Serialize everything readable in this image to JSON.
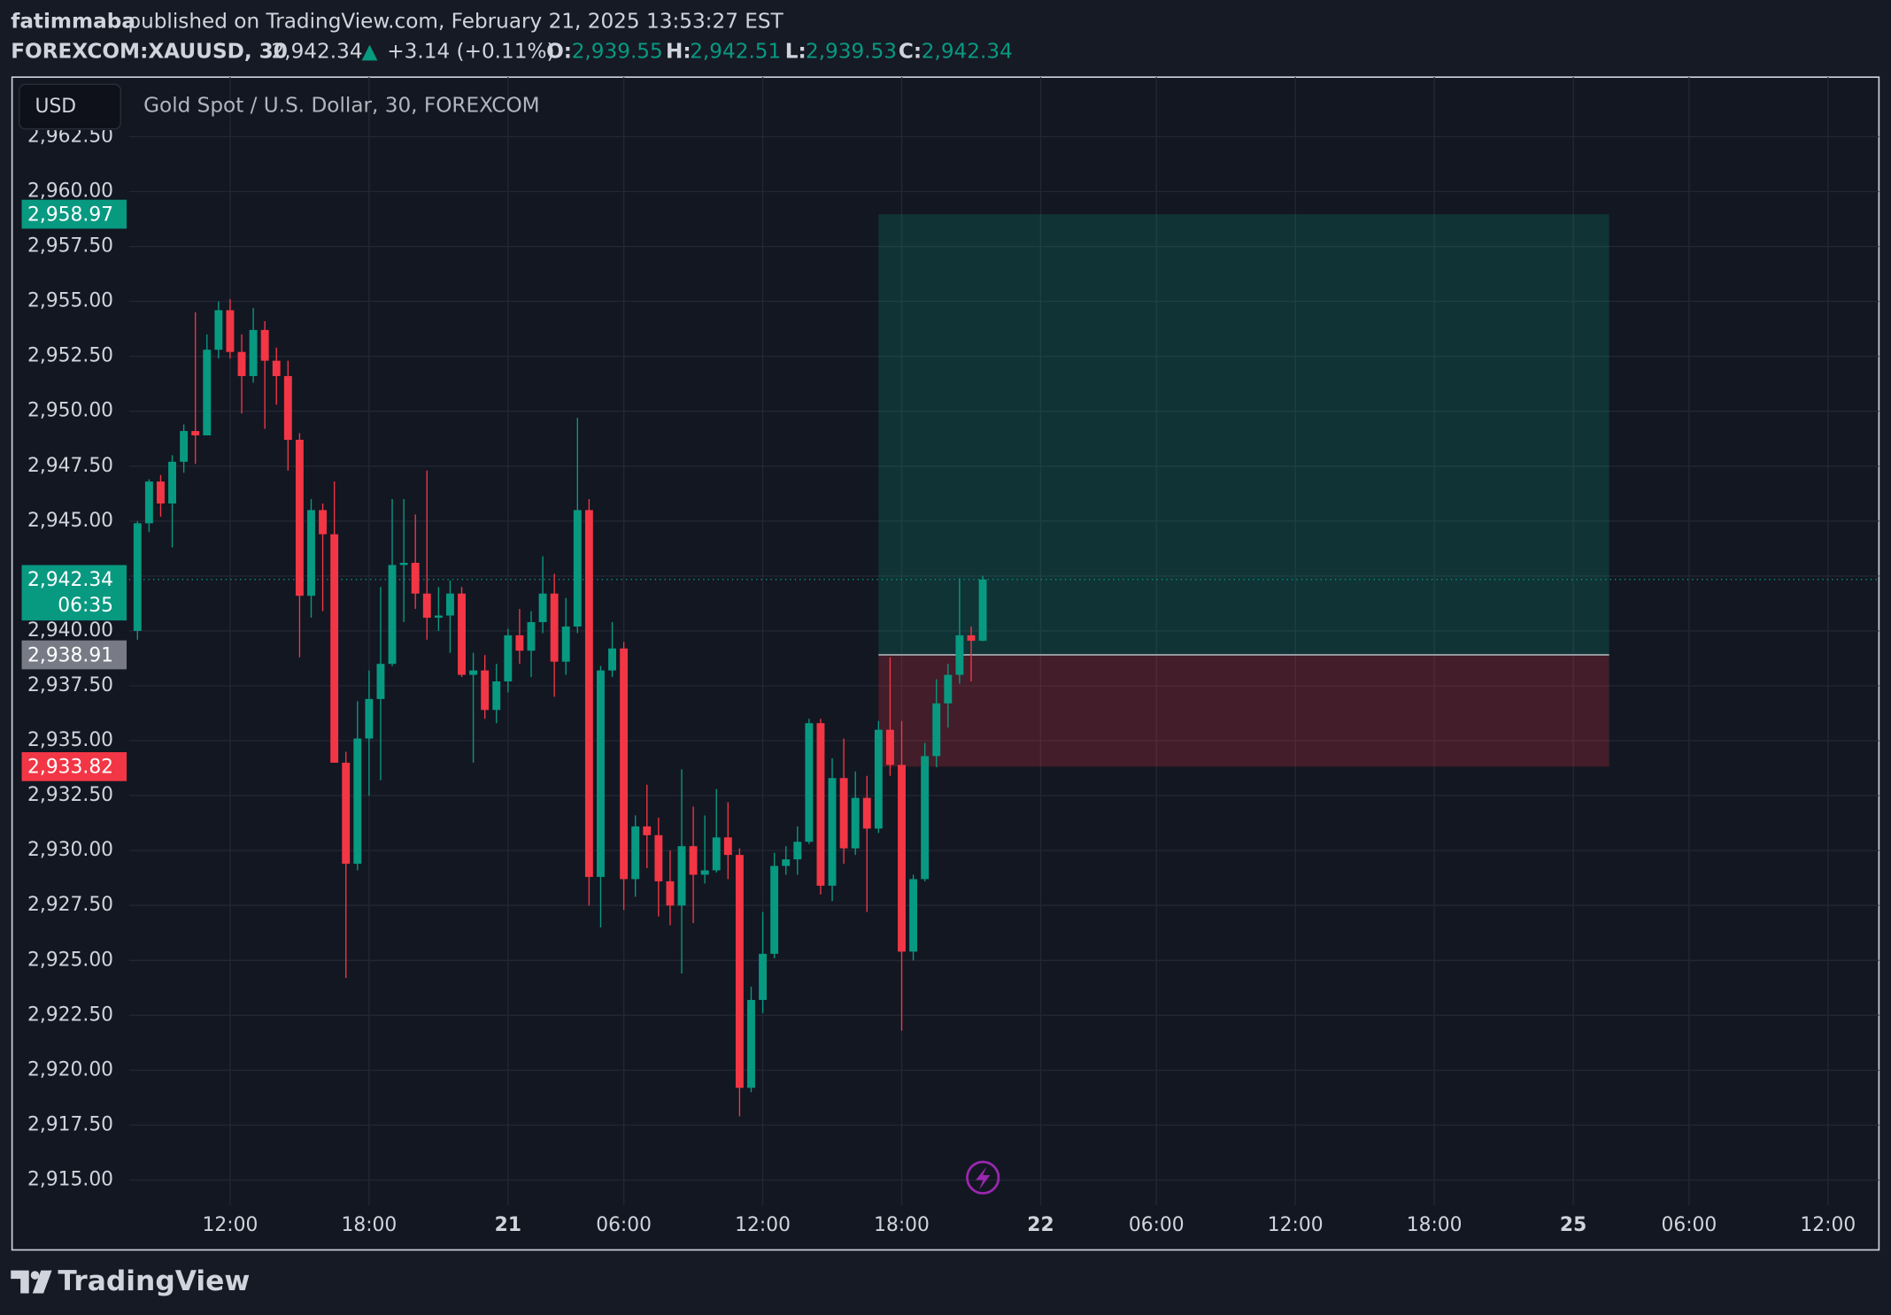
{
  "header": {
    "author": "fatimmaba",
    "published": "published on TradingView.com, February 21, 2025 13:53:27 EST",
    "symbol": "FOREXCOM:XAUUSD, 30",
    "last": "2,942.34",
    "arrow": "▲",
    "change": "+3.14 (+0.11%)",
    "o_label": "O:",
    "open": "2,939.55",
    "h_label": "H:",
    "high": "2,942.51",
    "l_label": "L:",
    "low": "2,939.53",
    "c_label": "C:",
    "close": "2,942.34"
  },
  "chart_data": {
    "type": "candlestick",
    "title": "Gold Spot / U.S. Dollar, 30, FOREXCOM",
    "currency": "USD",
    "up_color": "#089981",
    "down_color": "#f23645",
    "grid": true,
    "xlim": [
      -0.73,
      150.4
    ],
    "ylim": [
      2913.85,
      2965.21
    ],
    "xticks": [
      {
        "value": 8,
        "label": "12:00"
      },
      {
        "value": 20,
        "label": "18:00"
      },
      {
        "value": 32,
        "label": "21"
      },
      {
        "value": 42,
        "label": "06:00"
      },
      {
        "value": 54,
        "label": "12:00"
      },
      {
        "value": 66,
        "label": "18:00"
      },
      {
        "value": 78,
        "label": "22"
      },
      {
        "value": 88,
        "label": "06:00"
      },
      {
        "value": 100,
        "label": "12:00"
      },
      {
        "value": 112,
        "label": "18:00"
      },
      {
        "value": 124,
        "label": "25"
      },
      {
        "value": 134,
        "label": "06:00"
      },
      {
        "value": 146,
        "label": "12:00"
      }
    ],
    "yticks": [
      {
        "value": 2915,
        "label": "2,915.00"
      },
      {
        "value": 2917.5,
        "label": "2,917.50"
      },
      {
        "value": 2920,
        "label": "2,920.00"
      },
      {
        "value": 2922.5,
        "label": "2,922.50"
      },
      {
        "value": 2925,
        "label": "2,925.00"
      },
      {
        "value": 2927.5,
        "label": "2,927.50"
      },
      {
        "value": 2930,
        "label": "2,930.00"
      },
      {
        "value": 2932.5,
        "label": "2,932.50"
      },
      {
        "value": 2935,
        "label": "2,935.00"
      },
      {
        "value": 2937.5,
        "label": "2,937.50"
      },
      {
        "value": 2940,
        "label": "2,940.00"
      },
      {
        "value": 2942.5,
        "label": "2,942.50"
      },
      {
        "value": 2945,
        "label": "2,945.00"
      },
      {
        "value": 2947.5,
        "label": "2,947.50"
      },
      {
        "value": 2950,
        "label": "2,950.00"
      },
      {
        "value": 2952.5,
        "label": "2,952.50"
      },
      {
        "value": 2955,
        "label": "2,955.00"
      },
      {
        "value": 2957.5,
        "label": "2,957.50"
      },
      {
        "value": 2960,
        "label": "2,960.00"
      },
      {
        "value": 2962.5,
        "label": "2,962.50"
      }
    ],
    "open": [
      2940.0,
      2944.9,
      2946.8,
      2945.8,
      2947.7,
      2949.1,
      2948.9,
      2952.8,
      2954.6,
      2952.7,
      2951.6,
      2953.7,
      2952.3,
      2951.6,
      2948.7,
      2941.6,
      2945.5,
      2944.4,
      2934.0,
      2929.4,
      2935.1,
      2936.9,
      2938.5,
      2943.0,
      2943.1,
      2941.7,
      2940.6,
      2940.7,
      2941.7,
      2938.0,
      2938.2,
      2936.4,
      2937.7,
      2939.8,
      2939.1,
      2940.4,
      2941.7,
      2938.6,
      2940.2,
      2945.5,
      2928.8,
      2938.2,
      2939.2,
      2928.7,
      2931.1,
      2930.7,
      2928.6,
      2927.5,
      2930.2,
      2928.9,
      2929.1,
      2930.6,
      2929.8,
      2919.2,
      2923.2,
      2925.3,
      2929.3,
      2929.6,
      2930.4,
      2935.8,
      2928.4,
      2933.3,
      2930.1,
      2932.4,
      2931.0,
      2935.5,
      2933.9,
      2925.4,
      2928.7,
      2934.3,
      2936.7,
      2938.0,
      2939.8,
      2939.55
    ],
    "high": [
      2945.0,
      2946.9,
      2947.1,
      2948.0,
      2949.4,
      2954.5,
      2953.5,
      2955.0,
      2955.1,
      2953.5,
      2954.7,
      2954.1,
      2952.9,
      2952.3,
      2949.0,
      2946.0,
      2945.8,
      2946.8,
      2934.5,
      2936.8,
      2938.2,
      2942.0,
      2946.0,
      2946.0,
      2945.3,
      2947.3,
      2942.0,
      2942.3,
      2942.0,
      2939.0,
      2938.9,
      2938.5,
      2940.1,
      2941.0,
      2940.9,
      2943.4,
      2942.6,
      2941.5,
      2949.7,
      2946.0,
      2938.4,
      2940.4,
      2939.5,
      2931.6,
      2933.0,
      2931.5,
      2930.0,
      2933.7,
      2932.0,
      2931.6,
      2932.8,
      2932.2,
      2930.1,
      2923.8,
      2927.2,
      2929.9,
      2930.2,
      2931.1,
      2936.0,
      2936.0,
      2934.2,
      2935.1,
      2933.6,
      2933.4,
      2935.9,
      2938.8,
      2935.9,
      2928.9,
      2934.9,
      2937.8,
      2938.5,
      2942.4,
      2940.2,
      2942.51
    ],
    "low": [
      2939.6,
      2944.5,
      2945.2,
      2943.8,
      2947.2,
      2947.6,
      2948.9,
      2952.4,
      2952.4,
      2949.9,
      2951.3,
      2949.2,
      2950.3,
      2947.3,
      2938.8,
      2940.6,
      2940.9,
      2934.0,
      2924.2,
      2929.1,
      2932.5,
      2933.2,
      2938.4,
      2940.4,
      2941.0,
      2939.6,
      2940.0,
      2939.0,
      2937.9,
      2934.0,
      2936.0,
      2935.8,
      2937.2,
      2938.5,
      2937.9,
      2939.9,
      2937.0,
      2938.0,
      2939.9,
      2927.5,
      2926.5,
      2937.9,
      2927.3,
      2927.9,
      2929.2,
      2927.0,
      2926.6,
      2924.4,
      2926.7,
      2928.5,
      2929.0,
      2928.7,
      2917.9,
      2919.0,
      2922.6,
      2925.1,
      2928.9,
      2928.9,
      2930.3,
      2928.0,
      2927.7,
      2929.4,
      2929.8,
      2927.2,
      2930.8,
      2933.4,
      2921.8,
      2925.0,
      2928.6,
      2933.8,
      2935.6,
      2937.6,
      2937.7,
      2939.53
    ],
    "close": [
      2944.9,
      2946.8,
      2945.8,
      2947.7,
      2949.1,
      2948.9,
      2952.8,
      2954.6,
      2952.7,
      2951.6,
      2953.7,
      2952.3,
      2951.6,
      2948.7,
      2941.6,
      2945.5,
      2944.4,
      2934.0,
      2929.4,
      2935.1,
      2936.9,
      2938.5,
      2943.0,
      2943.1,
      2941.7,
      2940.6,
      2940.7,
      2941.7,
      2938.0,
      2938.2,
      2936.4,
      2937.7,
      2939.8,
      2939.1,
      2940.4,
      2941.7,
      2938.6,
      2940.2,
      2945.5,
      2928.8,
      2938.2,
      2939.2,
      2928.7,
      2931.1,
      2930.7,
      2928.6,
      2927.5,
      2930.2,
      2928.9,
      2929.1,
      2930.6,
      2929.8,
      2919.2,
      2923.2,
      2925.3,
      2929.3,
      2929.6,
      2930.4,
      2935.8,
      2928.4,
      2933.3,
      2930.1,
      2932.4,
      2931.0,
      2935.5,
      2933.9,
      2925.4,
      2928.7,
      2934.3,
      2936.7,
      2938.0,
      2939.8,
      2939.55,
      2942.34
    ],
    "position": {
      "entry": {
        "value": 2938.91,
        "label": "2,938.91"
      },
      "target": {
        "value": 2958.97,
        "label": "2,958.97"
      },
      "stop": {
        "value": 2933.82,
        "label": "2,933.82"
      },
      "start": 64,
      "end": 127.1
    },
    "last_price": {
      "value": 2942.34,
      "label": "2,942.34",
      "countdown": "06:35"
    }
  },
  "footer": {
    "brand": "TradingView"
  }
}
